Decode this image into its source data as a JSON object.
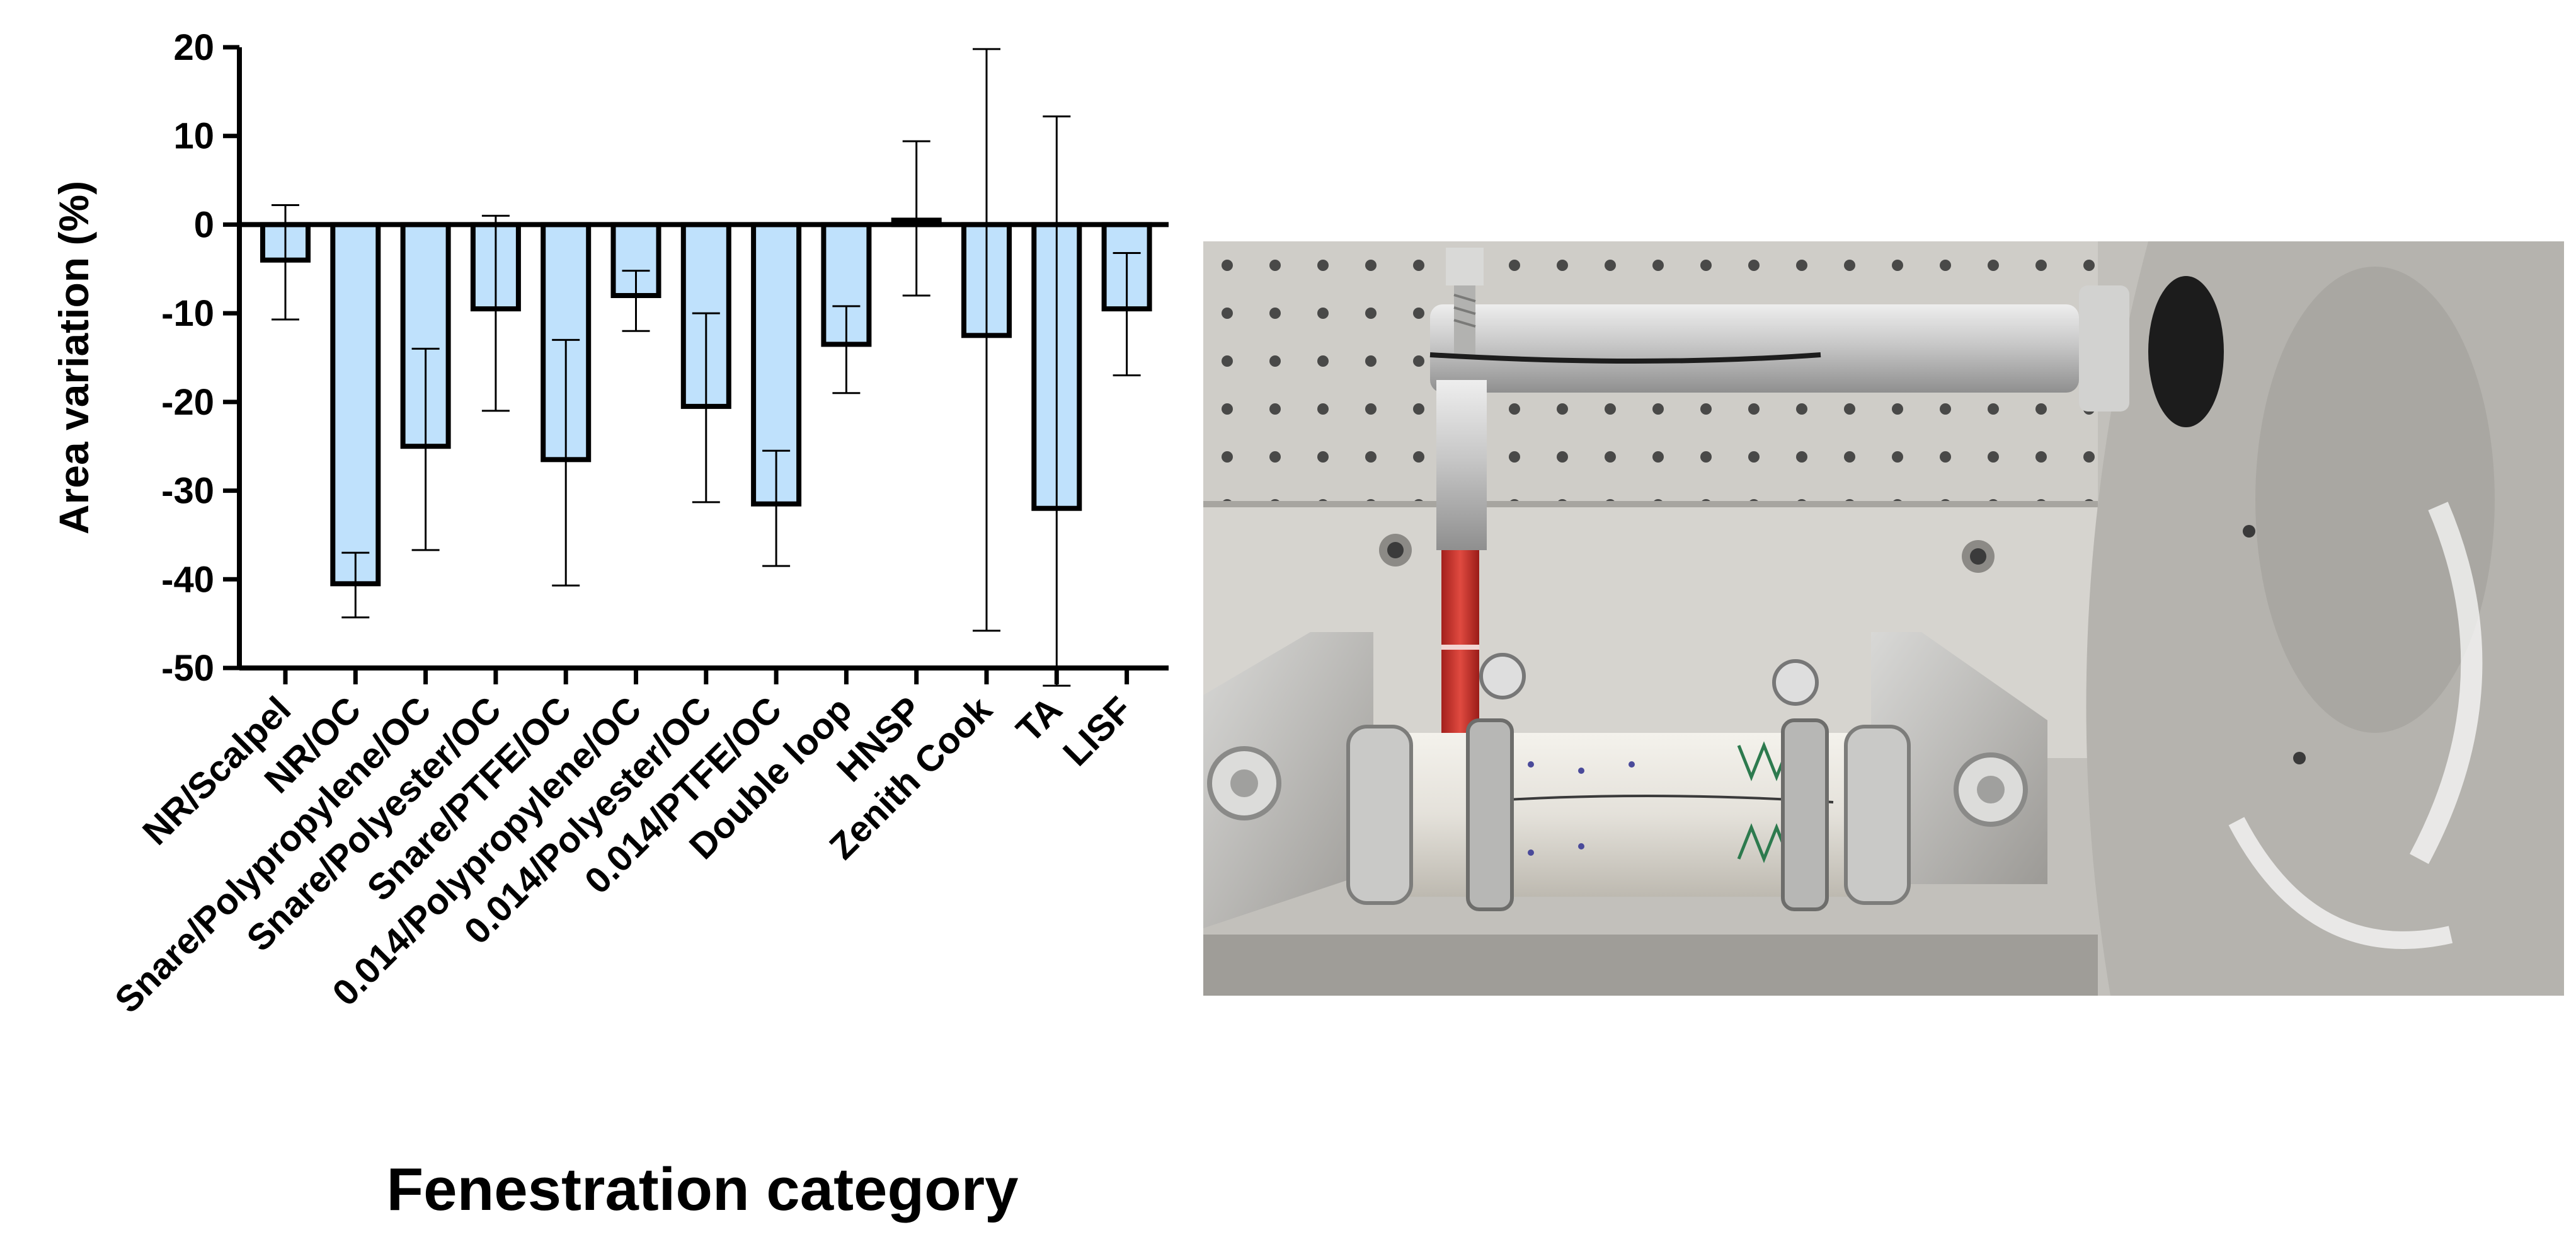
{
  "chart_data": {
    "type": "bar",
    "xlabel": "Fenestration category",
    "ylabel": "Area variation (%)",
    "ylim": [
      -50,
      20
    ],
    "yticks": [
      20,
      10,
      0,
      -10,
      -20,
      -30,
      -40,
      -50
    ],
    "categories": [
      "NR/Scalpel",
      "NR/OC",
      "Snare/Polypropylene/OC",
      "Snare/Polyester/OC",
      "Snare/PTFE/OC",
      "0.014/Polypropylene/OC",
      "0.014/Polyester/OC",
      "0.014/PTFE/OC",
      "Double loop",
      "HNSP",
      "Zenith Cook",
      "TA",
      "LISF"
    ],
    "values": [
      -4,
      -40.5,
      -25,
      -9.5,
      -26.5,
      -8,
      -20.5,
      -31.5,
      -13.5,
      0.5,
      -12.5,
      -32,
      -9.5
    ],
    "error_upper": [
      2.2,
      -37,
      -14,
      1,
      -13,
      -5.2,
      -10,
      -25.5,
      -9.2,
      9.4,
      19.8,
      12.2,
      -3.2
    ],
    "error_lower": [
      -10.7,
      -44.3,
      -36.7,
      -21,
      -40.7,
      -12,
      -31.3,
      -38.5,
      -19,
      -8,
      -45.8,
      -52,
      -17
    ],
    "bar_color": "#bfe1fc",
    "bar_edge_color": "#000000",
    "grid": false
  },
  "photo": {
    "icon": "fenestration-test-rig-photo"
  }
}
